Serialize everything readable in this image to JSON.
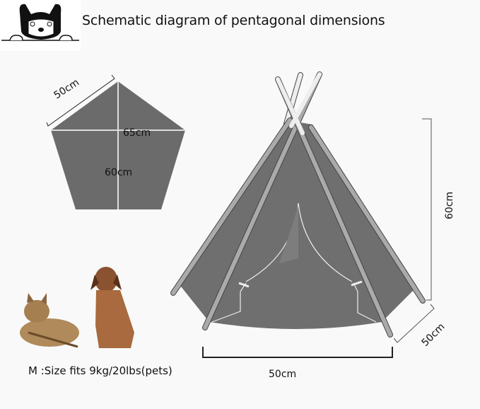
{
  "title": "Schematic diagram of pentagonal dimensions",
  "logo": {
    "icon": "french-bulldog-logo"
  },
  "pentagon": {
    "side_label": "50cm",
    "width_label": "65cm",
    "height_label": "60cm",
    "fill": "#6b6b6b"
  },
  "tent": {
    "height_label": "60cm",
    "depth_label": "50cm",
    "width_label": "50cm",
    "fill": "#6f6f6f"
  },
  "pets": {
    "size_text": "M :Size fits  9kg/20lbs(pets)"
  }
}
